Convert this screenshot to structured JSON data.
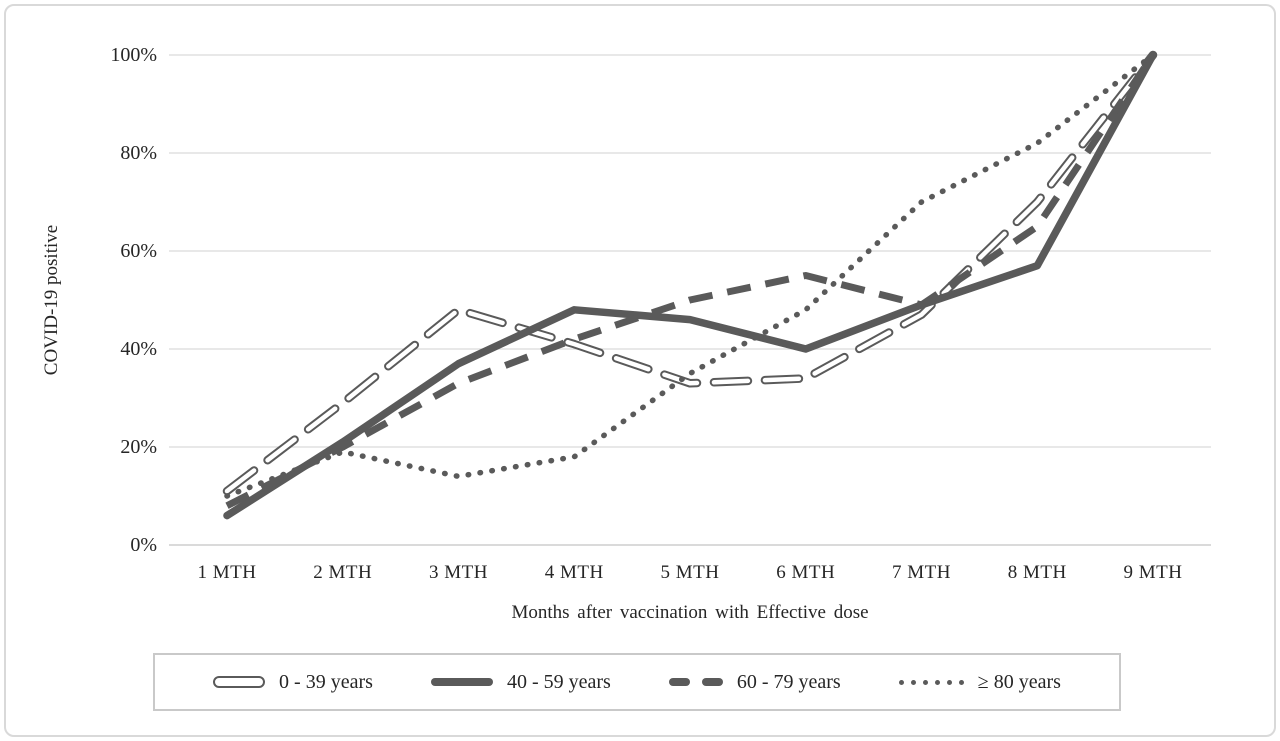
{
  "figure": {
    "ylabel": "COVID-19 positive",
    "xlabel": "Months after vaccination with Effective dose"
  },
  "chart_data": {
    "type": "line",
    "title": "",
    "xlabel": "Months after vaccination with Effective dose",
    "ylabel": "COVID-19 positive",
    "categories": [
      "1 MTH",
      "2 MTH",
      "3 MTH",
      "4 MTH",
      "5 MTH",
      "6 MTH",
      "7 MTH",
      "8 MTH",
      "9 MTH"
    ],
    "y_ticks": [
      "0%",
      "20%",
      "40%",
      "60%",
      "80%",
      "100%"
    ],
    "ylim": [
      0,
      100
    ],
    "grid": "horizontal",
    "gridline_color": "#d9d9d9",
    "line_color": "#5a5a5a",
    "legend_position": "bottom-box",
    "series": [
      {
        "name": "0 - 39 years",
        "dash": "open-dash",
        "values": [
          11,
          29,
          48,
          41,
          33,
          34,
          47,
          70,
          100
        ]
      },
      {
        "name": "40 - 59 years",
        "dash": "solid",
        "values": [
          6,
          21,
          37,
          48,
          46,
          40,
          49,
          57,
          100
        ]
      },
      {
        "name": "60 - 79 years",
        "dash": "dashed",
        "values": [
          8,
          20,
          33,
          42,
          50,
          55,
          49,
          65,
          100
        ]
      },
      {
        "name": "≥ 80 years",
        "dash": "dotted",
        "values": [
          10,
          19,
          14,
          18,
          35,
          48,
          70,
          82,
          100
        ]
      }
    ]
  }
}
